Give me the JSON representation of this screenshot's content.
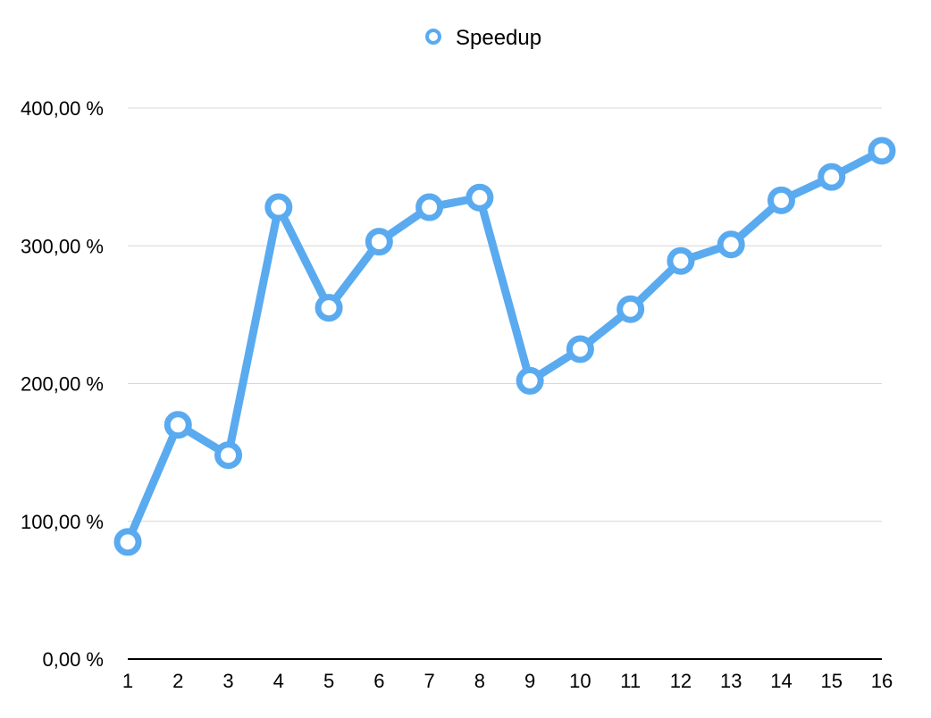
{
  "chart_data": {
    "type": "line",
    "title": "",
    "xlabel": "",
    "ylabel": "",
    "categories": [
      "1",
      "2",
      "3",
      "4",
      "5",
      "6",
      "7",
      "8",
      "9",
      "10",
      "11",
      "12",
      "13",
      "14",
      "15",
      "16"
    ],
    "series": [
      {
        "name": "Speedup",
        "color": "#5aaaf0",
        "values": [
          85,
          170,
          148,
          328,
          255,
          303,
          328,
          335,
          202,
          225,
          254,
          289,
          301,
          333,
          350,
          369
        ]
      }
    ],
    "ylim": [
      0,
      400
    ],
    "yticks": [
      0,
      100,
      200,
      300,
      400
    ],
    "ytick_labels": [
      "0,00 %",
      "100,00 %",
      "200,00 %",
      "300,00 %",
      "400,00 %"
    ],
    "grid": "horizontal",
    "legend_position": "top-center"
  }
}
